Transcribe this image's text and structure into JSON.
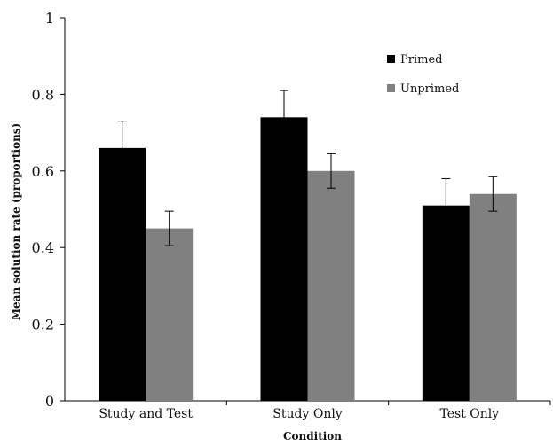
{
  "chart_data": {
    "type": "bar",
    "title": "",
    "xlabel": "Condition",
    "ylabel": "Mean solution rate (proportions)",
    "categories": [
      "Study and Test",
      "Study Only",
      "Test Only"
    ],
    "series": [
      {
        "name": "Primed",
        "color": "#000000",
        "values": [
          0.66,
          0.74,
          0.51
        ],
        "errors": [
          0.07,
          0.07,
          0.07
        ]
      },
      {
        "name": "Unprimed",
        "color": "#808080",
        "values": [
          0.45,
          0.6,
          0.54
        ],
        "errors": [
          0.045,
          0.045,
          0.045
        ]
      }
    ],
    "ylim": [
      0,
      1
    ],
    "yticks": [
      "0",
      "0.2",
      "0.4",
      "0.6",
      "0.8",
      "1"
    ],
    "grid": false,
    "legend_position": "top-right"
  }
}
